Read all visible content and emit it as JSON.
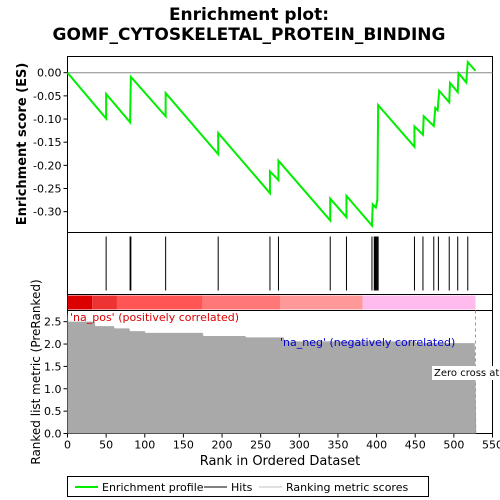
{
  "chart_data": {
    "type": "line",
    "title": "Enrichment plot:",
    "subtitle": "GOMF_CYTOSKELETAL_PROTEIN_BINDING",
    "xlabel": "Rank in Ordered Dataset",
    "xlim": [
      0,
      550
    ],
    "x_ticks": [
      "0",
      "50",
      "100",
      "150",
      "200",
      "250",
      "300",
      "350",
      "400",
      "450",
      "500",
      "550"
    ],
    "es_panel": {
      "ylabel": "Enrichment score (ES)",
      "ylim": [
        -0.345,
        0.035
      ],
      "y_ticks": [
        "0.00",
        "-0.05",
        "-0.10",
        "-0.15",
        "-0.20",
        "-0.25",
        "-0.30"
      ],
      "series": [
        {
          "name": "Enrichment profile",
          "color": "#00ee00",
          "x": [
            0,
            50,
            50,
            81,
            82,
            127,
            127,
            195,
            195,
            262,
            262,
            273,
            273,
            340,
            340,
            361,
            361,
            394,
            395,
            399,
            401,
            402,
            449,
            449,
            460,
            461,
            474,
            476,
            479,
            481,
            494,
            495,
            505,
            506,
            516,
            518,
            528
          ],
          "y": [
            0.0,
            -0.099,
            -0.046,
            -0.107,
            -0.009,
            -0.094,
            -0.044,
            -0.176,
            -0.13,
            -0.26,
            -0.213,
            -0.232,
            -0.19,
            -0.319,
            -0.272,
            -0.312,
            -0.266,
            -0.33,
            -0.284,
            -0.291,
            -0.274,
            -0.07,
            -0.16,
            -0.116,
            -0.134,
            -0.094,
            -0.115,
            -0.076,
            -0.081,
            -0.039,
            -0.064,
            -0.022,
            -0.042,
            -0.001,
            -0.021,
            0.023,
            0.004
          ]
        }
      ],
      "grid": false
    },
    "hits_panel": {
      "label": "Hits",
      "color": "#000000",
      "positions": [
        50,
        81,
        82,
        127,
        195,
        262,
        273,
        340,
        361,
        394,
        397,
        398,
        399,
        400,
        401,
        402,
        449,
        460,
        474,
        480,
        494,
        505,
        518
      ]
    },
    "heat_strip": {
      "colors_from_left": [
        "#dd0000",
        "#ee3333",
        "#ff5555",
        "#ff7777",
        "#ff9999",
        "#ffbbee"
      ],
      "boundaries": [
        0,
        32,
        64,
        175,
        275,
        382,
        528
      ]
    },
    "metric_panel": {
      "ylabel": "Ranked list metric (PreRanked)",
      "ylim": [
        0,
        2.75
      ],
      "y_ticks": [
        "0.0",
        "0.5",
        "1.0",
        "1.5",
        "2.0",
        "2.5"
      ],
      "fill_color": "#a9a9a9",
      "x": [
        0,
        1,
        35,
        36,
        60,
        61,
        80,
        81,
        100,
        101,
        175,
        176,
        230,
        231,
        280,
        281,
        450,
        451,
        527,
        528,
        529
      ],
      "y": [
        2.75,
        2.5,
        2.5,
        2.4,
        2.4,
        2.35,
        2.35,
        2.29,
        2.29,
        2.25,
        2.25,
        2.18,
        2.18,
        2.15,
        2.15,
        2.06,
        2.06,
        2.02,
        2.02,
        1.3,
        0.0
      ],
      "pos_label": "'na_pos' (positively correlated)",
      "neg_label": "'na_neg' (negatively correlated)",
      "zero_cross_label": "Zero cross at",
      "zero_cross_x": 528
    },
    "legend": {
      "placement": "bottom",
      "items": [
        {
          "label": "Enrichment profile",
          "color": "#00ee00",
          "style": "line"
        },
        {
          "label": "Hits",
          "color": "#000000",
          "style": "line"
        },
        {
          "label": "Ranking metric scores",
          "color": "#c0c0c0",
          "style": "line"
        }
      ]
    }
  }
}
